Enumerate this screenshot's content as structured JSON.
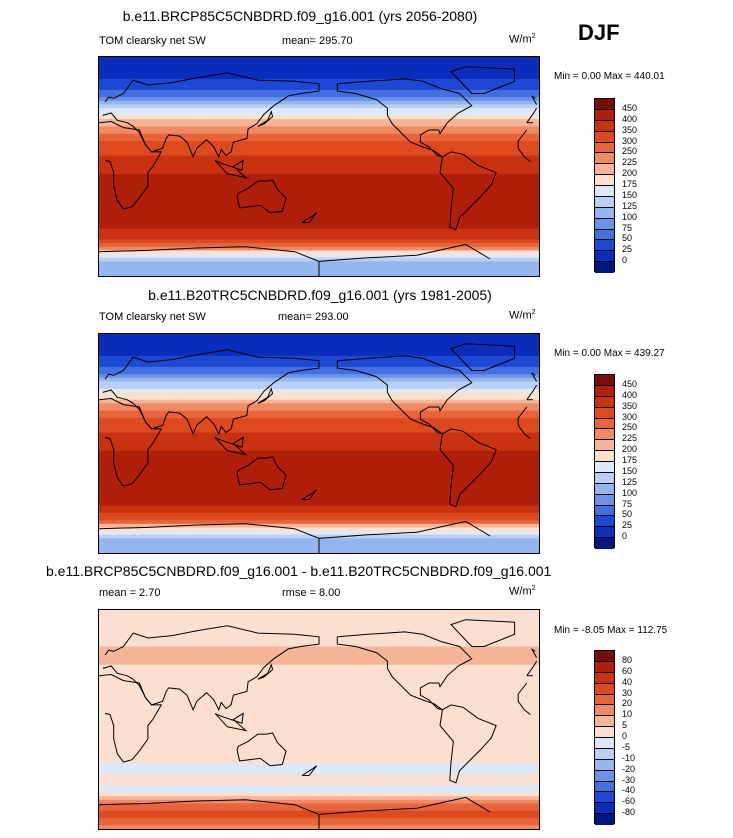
{
  "season": "DJF",
  "units": "W/m",
  "units_sup": "2",
  "panels": [
    {
      "title": "b.e11.BRCP85C5CNBDRD.f09_g16.001 (yrs 2056-2080)",
      "variable": "TOM clearsky net SW",
      "mean": "mean= 295.70",
      "minmax": "Min =   0.00 Max = 440.01"
    },
    {
      "title": "b.e11.B20TRC5CNBDRD.f09_g16.001 (yrs 1981-2005)",
      "variable": "TOM clearsky net SW",
      "mean": "mean= 293.00",
      "minmax": "Min =   0.00 Max = 439.27"
    },
    {
      "title": "b.e11.BRCP85C5CNBDRD.f09_g16.001 - b.e11.B20TRC5CNBDRD.f09_g16.001",
      "mean": "mean =   2.70",
      "rmse": "rmse =   8.00",
      "minmax": "Min =  -8.05 Max = 112.75"
    }
  ],
  "colorbars": {
    "abs_labels": [
      "450",
      "400",
      "350",
      "300",
      "250",
      "225",
      "200",
      "175",
      "150",
      "125",
      "100",
      "75",
      "50",
      "25",
      "0"
    ],
    "abs_colors": [
      "#7b0a0a",
      "#b01e0c",
      "#c8320f",
      "#dc4a1e",
      "#e8643a",
      "#f08a62",
      "#f6b596",
      "#fbe0d0",
      "#dde9f8",
      "#b9d0f2",
      "#93b6ec",
      "#6b92e6",
      "#436fe0",
      "#1c48d4",
      "#0a2dbb",
      "#00187e"
    ],
    "diff_labels": [
      "80",
      "60",
      "40",
      "30",
      "20",
      "10",
      "5",
      "0",
      "-5",
      "-10",
      "-20",
      "-30",
      "-40",
      "-60",
      "-80"
    ],
    "diff_colors": [
      "#7b0a0a",
      "#b01e0c",
      "#c8320f",
      "#dc4a1e",
      "#e8643a",
      "#f08a62",
      "#f6b596",
      "#fbe0d0",
      "#dde9f8",
      "#b9d0f2",
      "#93b6ec",
      "#6b92e6",
      "#436fe0",
      "#1c48d4",
      "#0a2dbb",
      "#00187e"
    ]
  },
  "chart_data": [
    {
      "type": "heatmap",
      "title": "b.e11.BRCP85C5CNBDRD.f09_g16.001 (yrs 2056-2080)",
      "variable": "TOM clearsky net SW",
      "season": "DJF",
      "units": "W/m2",
      "mean": 295.7,
      "min": 0.0,
      "max": 440.01,
      "levels": [
        0,
        25,
        50,
        75,
        100,
        125,
        150,
        175,
        200,
        225,
        250,
        300,
        350,
        400,
        450
      ],
      "lat": [
        90,
        75,
        60,
        50,
        40,
        30,
        20,
        10,
        0,
        -10,
        -20,
        -30,
        -40,
        -50,
        -60,
        -70,
        -80,
        -90
      ],
      "zonal_values": [
        0,
        15,
        60,
        130,
        190,
        240,
        300,
        340,
        380,
        420,
        435,
        435,
        430,
        400,
        350,
        200,
        120,
        100
      ]
    },
    {
      "type": "heatmap",
      "title": "b.e11.B20TRC5CNBDRD.f09_g16.001 (yrs 1981-2005)",
      "variable": "TOM clearsky net SW",
      "season": "DJF",
      "units": "W/m2",
      "mean": 293.0,
      "min": 0.0,
      "max": 439.27,
      "levels": [
        0,
        25,
        50,
        75,
        100,
        125,
        150,
        175,
        200,
        225,
        250,
        300,
        350,
        400,
        450
      ],
      "lat": [
        90,
        75,
        60,
        50,
        40,
        30,
        20,
        10,
        0,
        -10,
        -20,
        -30,
        -40,
        -50,
        -60,
        -70,
        -80,
        -90
      ],
      "zonal_values": [
        0,
        15,
        55,
        125,
        185,
        240,
        300,
        340,
        380,
        420,
        435,
        435,
        430,
        400,
        340,
        180,
        120,
        100
      ]
    },
    {
      "type": "heatmap",
      "title": "b.e11.BRCP85C5CNBDRD.f09_g16.001 - b.e11.B20TRC5CNBDRD.f09_g16.001",
      "season": "DJF",
      "units": "W/m2",
      "mean": 2.7,
      "rmse": 8.0,
      "min": -8.05,
      "max": 112.75,
      "levels": [
        -80,
        -60,
        -40,
        -30,
        -20,
        -10,
        -5,
        0,
        5,
        10,
        20,
        30,
        40,
        60,
        80
      ],
      "lat": [
        90,
        75,
        60,
        50,
        40,
        30,
        20,
        10,
        0,
        -10,
        -20,
        -30,
        -40,
        -50,
        -60,
        -70,
        -80,
        -90
      ],
      "zonal_values": [
        0,
        2,
        5,
        8,
        3,
        2,
        2,
        2,
        2,
        2,
        2,
        2,
        -2,
        3,
        -4,
        25,
        35,
        8
      ]
    }
  ]
}
